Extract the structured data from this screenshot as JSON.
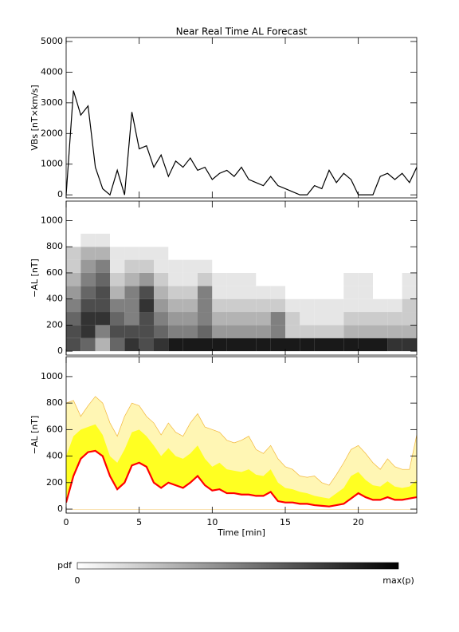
{
  "chart_data": [
    {
      "type": "line",
      "title": "Near Real Time AL Forecast",
      "ylabel": "VBs [nT×km/s]",
      "x": [
        0,
        0.5,
        1,
        1.5,
        2,
        2.5,
        3,
        3.5,
        4,
        4.5,
        5,
        5.5,
        6,
        6.5,
        7,
        7.5,
        8,
        8.5,
        9,
        9.5,
        10,
        10.5,
        11,
        11.5,
        12,
        12.5,
        13,
        13.5,
        14,
        14.5,
        15,
        15.5,
        16,
        16.5,
        17,
        17.5,
        18,
        18.5,
        19,
        19.5,
        20,
        20.5,
        21,
        21.5,
        22,
        22.5,
        23,
        23.5,
        24
      ],
      "series": [
        {
          "color": "#000000",
          "values": [
            0,
            3400,
            2600,
            2900,
            900,
            200,
            0,
            800,
            0,
            2700,
            1500,
            1600,
            900,
            1300,
            600,
            1100,
            900,
            1200,
            800,
            900,
            500,
            700,
            800,
            600,
            900,
            500,
            400,
            300,
            600,
            300,
            200,
            100,
            0,
            0,
            300,
            200,
            800,
            400,
            700,
            500,
            0,
            0,
            0,
            600,
            700,
            500,
            700,
            400,
            900
          ]
        }
      ],
      "xlim": [
        0,
        24
      ],
      "xticks": [
        0,
        5,
        10,
        15,
        20
      ],
      "ylim": [
        -100,
        5130
      ],
      "yticks": [
        0,
        1000,
        2000,
        3000,
        4000,
        5000
      ]
    },
    {
      "type": "heatmap",
      "ylabel": "−AL [nT]",
      "x_bins": [
        0,
        1,
        2,
        3,
        4,
        5,
        6,
        7,
        8,
        9,
        10,
        11,
        12,
        13,
        14,
        15,
        16,
        17,
        18,
        19,
        20,
        21,
        22,
        23,
        24
      ],
      "y_bins": [
        0,
        100,
        200,
        300,
        400,
        500,
        600,
        700,
        800,
        900
      ],
      "z": [
        [
          0.7,
          0.6,
          0.3,
          0.6,
          0.8,
          0.7,
          0.8,
          0.9,
          0.9,
          0.9,
          0.9,
          0.9,
          0.9,
          0.9,
          0.9,
          0.9,
          0.9,
          0.9,
          0.9,
          0.9,
          0.9,
          0.9,
          0.8,
          0.8
        ],
        [
          0.7,
          0.8,
          0.5,
          0.7,
          0.7,
          0.7,
          0.6,
          0.5,
          0.5,
          0.6,
          0.4,
          0.4,
          0.4,
          0.4,
          0.5,
          0.2,
          0.2,
          0.2,
          0.2,
          0.3,
          0.3,
          0.3,
          0.3,
          0.3
        ],
        [
          0.6,
          0.8,
          0.8,
          0.6,
          0.5,
          0.7,
          0.5,
          0.4,
          0.4,
          0.5,
          0.3,
          0.3,
          0.3,
          0.3,
          0.5,
          0.2,
          0.1,
          0.1,
          0.1,
          0.2,
          0.2,
          0.2,
          0.2,
          0.2
        ],
        [
          0.5,
          0.7,
          0.7,
          0.5,
          0.5,
          0.8,
          0.4,
          0.3,
          0.3,
          0.5,
          0.2,
          0.2,
          0.2,
          0.2,
          0.2,
          0.1,
          0.1,
          0.1,
          0.1,
          0.1,
          0.1,
          0.1,
          0.1,
          0.2
        ],
        [
          0.4,
          0.6,
          0.7,
          0.3,
          0.5,
          0.7,
          0.3,
          0.2,
          0.2,
          0.5,
          0.1,
          0.1,
          0.1,
          0.1,
          0.1,
          0,
          0,
          0,
          0,
          0.1,
          0.1,
          0,
          0,
          0.1
        ],
        [
          0.3,
          0.5,
          0.6,
          0.2,
          0.3,
          0.4,
          0.2,
          0.1,
          0.1,
          0.2,
          0.1,
          0.1,
          0.1,
          0,
          0,
          0,
          0,
          0,
          0,
          0.1,
          0.1,
          0,
          0,
          0.1
        ],
        [
          0.2,
          0.4,
          0.5,
          0.1,
          0.2,
          0.2,
          0.1,
          0.1,
          0.1,
          0.1,
          0,
          0,
          0,
          0,
          0,
          0,
          0,
          0,
          0,
          0,
          0,
          0,
          0,
          0
        ],
        [
          0.2,
          0.3,
          0.3,
          0.1,
          0.1,
          0.1,
          0.1,
          0,
          0,
          0,
          0,
          0,
          0,
          0,
          0,
          0,
          0,
          0,
          0,
          0,
          0,
          0,
          0,
          0
        ],
        [
          0,
          0.1,
          0.1,
          0,
          0,
          0,
          0,
          0,
          0,
          0,
          0,
          0,
          0,
          0,
          0,
          0,
          0,
          0,
          0,
          0,
          0,
          0,
          0,
          0
        ]
      ],
      "xlim": [
        0,
        24
      ],
      "xticks": [
        0,
        5,
        10,
        15,
        20
      ],
      "ylim": [
        -30,
        1150
      ],
      "yticks": [
        0,
        200,
        400,
        600,
        800,
        1000
      ],
      "colorbar": {
        "label": "pdf",
        "min_label": "0",
        "max_label": "max(p)"
      }
    },
    {
      "type": "band",
      "ylabel": "−AL [nT]",
      "xlabel": "Time [min]",
      "x": [
        0,
        0.5,
        1,
        1.5,
        2,
        2.5,
        3,
        3.5,
        4,
        4.5,
        5,
        5.5,
        6,
        6.5,
        7,
        7.5,
        8,
        8.5,
        9,
        9.5,
        10,
        10.5,
        11,
        11.5,
        12,
        12.5,
        13,
        13.5,
        14,
        14.5,
        15,
        15.5,
        16,
        16.5,
        17,
        17.5,
        18,
        18.5,
        19,
        19.5,
        20,
        20.5,
        21,
        21.5,
        22,
        22.5,
        23,
        23.5,
        24
      ],
      "series": [
        {
          "color": "#fff6b4",
          "values": [
            800,
            820,
            700,
            780,
            850,
            800,
            650,
            550,
            700,
            800,
            780,
            700,
            650,
            560,
            650,
            580,
            550,
            650,
            720,
            620,
            600,
            580,
            520,
            500,
            520,
            550,
            450,
            420,
            480,
            380,
            320,
            300,
            250,
            240,
            250,
            200,
            180,
            260,
            350,
            450,
            480,
            420,
            350,
            300,
            380,
            320,
            300,
            300,
            560
          ]
        },
        {
          "color": "#ffff22",
          "values": [
            400,
            550,
            600,
            620,
            640,
            560,
            400,
            350,
            450,
            580,
            600,
            550,
            480,
            400,
            460,
            400,
            380,
            420,
            480,
            380,
            320,
            350,
            300,
            290,
            280,
            300,
            260,
            250,
            300,
            200,
            160,
            150,
            130,
            120,
            100,
            90,
            80,
            120,
            160,
            250,
            280,
            220,
            180,
            170,
            210,
            170,
            160,
            170,
            220
          ]
        },
        {
          "color": "#ff0000",
          "values": [
            50,
            250,
            380,
            430,
            440,
            400,
            250,
            150,
            200,
            330,
            350,
            320,
            200,
            160,
            200,
            180,
            160,
            200,
            250,
            180,
            140,
            150,
            120,
            120,
            110,
            110,
            100,
            100,
            130,
            60,
            50,
            50,
            40,
            40,
            30,
            25,
            20,
            30,
            40,
            80,
            120,
            90,
            70,
            70,
            90,
            70,
            70,
            80,
            90
          ]
        }
      ],
      "xlim": [
        0,
        24
      ],
      "xticks": [
        0,
        5,
        10,
        15,
        20
      ],
      "ylim": [
        -30,
        1150
      ],
      "yticks": [
        0,
        200,
        400,
        600,
        800,
        1000
      ]
    }
  ]
}
